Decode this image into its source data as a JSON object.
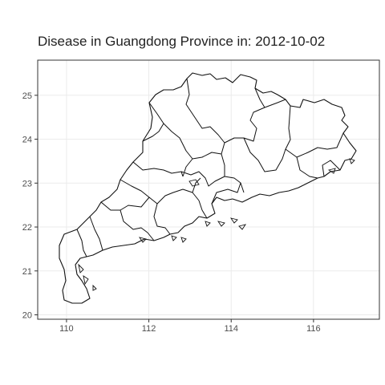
{
  "chart_data": {
    "type": "map",
    "title": "Disease in Guangdong Province in: 2012-10-02",
    "xlabel": "",
    "ylabel": "",
    "xlim": [
      109.3,
      117.6
    ],
    "ylim": [
      19.9,
      25.8
    ],
    "x_ticks": [
      "110",
      "112",
      "114",
      "116"
    ],
    "y_ticks": [
      "20",
      "21",
      "22",
      "23",
      "24",
      "25"
    ],
    "x_tick_values": [
      110,
      112,
      114,
      116
    ],
    "y_tick_values": [
      20,
      21,
      22,
      23,
      24,
      25
    ],
    "grid": true,
    "region": "Guangdong Province prefecture boundaries"
  }
}
